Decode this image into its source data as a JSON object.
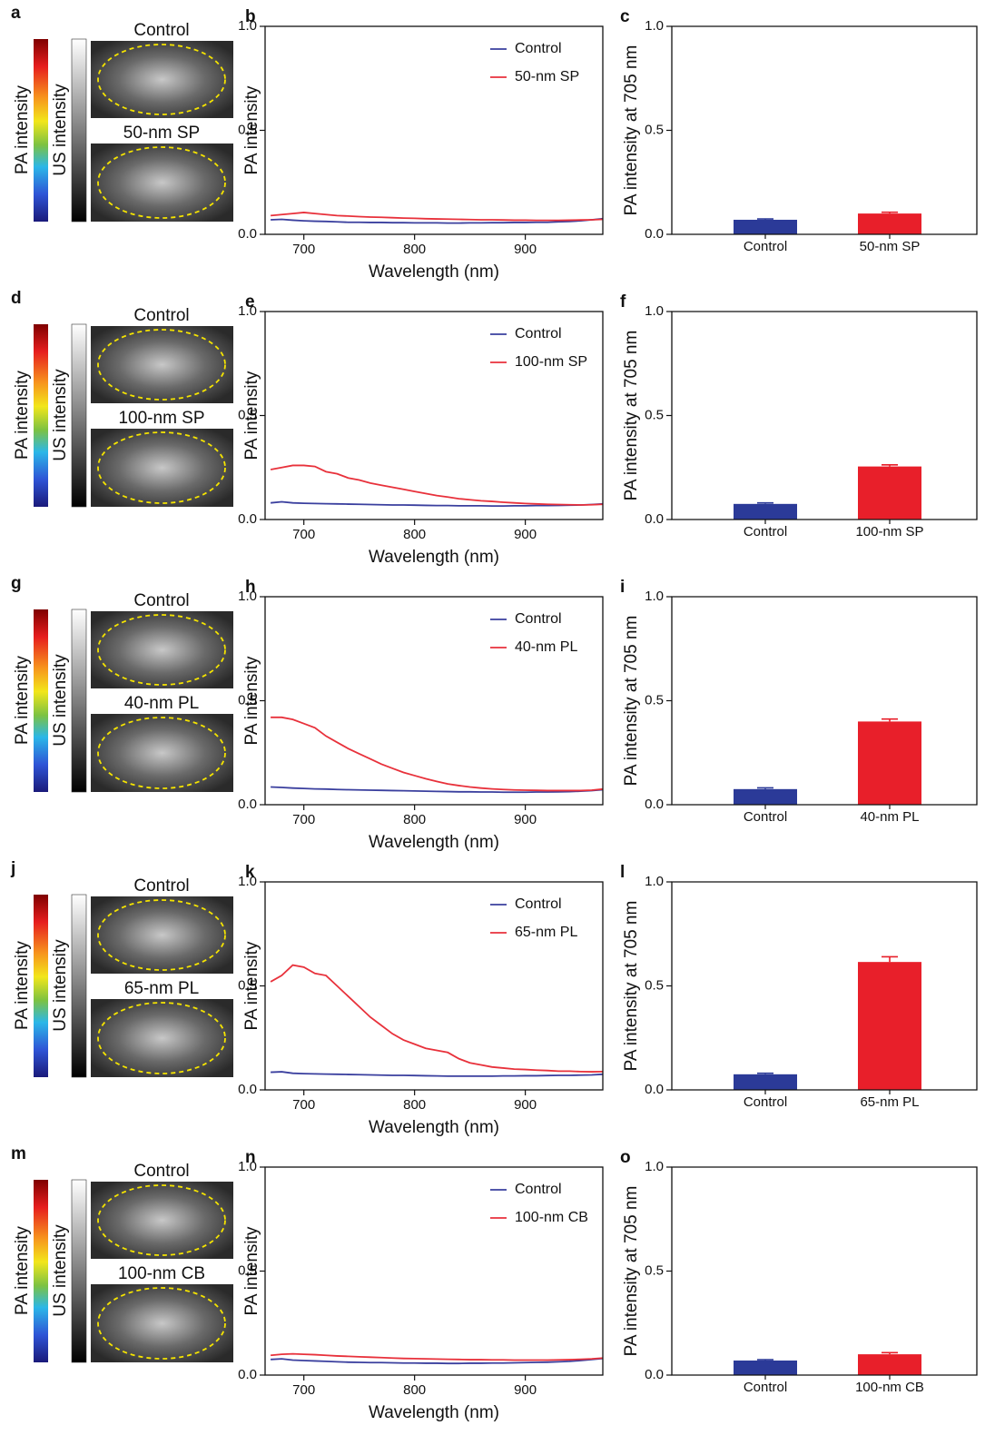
{
  "image_panels": [
    {
      "panel_label": "a",
      "colorbar_labels": [
        "PA intensity",
        "US intensity"
      ],
      "image_titles": [
        "Control",
        "50-nm SP"
      ]
    },
    {
      "panel_label": "d",
      "colorbar_labels": [
        "PA intensity",
        "US intensity"
      ],
      "image_titles": [
        "Control",
        "100-nm SP"
      ]
    },
    {
      "panel_label": "g",
      "colorbar_labels": [
        "PA intensity",
        "US intensity"
      ],
      "image_titles": [
        "Control",
        "40-nm PL"
      ]
    },
    {
      "panel_label": "j",
      "colorbar_labels": [
        "PA intensity",
        "US intensity"
      ],
      "image_titles": [
        "Control",
        "65-nm PL"
      ]
    },
    {
      "panel_label": "m",
      "colorbar_labels": [
        "PA intensity",
        "US intensity"
      ],
      "image_titles": [
        "Control",
        "100-nm CB"
      ]
    }
  ],
  "chart_data": [
    {
      "type": "line",
      "panel_label": "b",
      "ylabel": "PA intensity",
      "xlabel": "Wavelength (nm)",
      "legend": "upper right",
      "x": [
        670,
        680,
        690,
        700,
        710,
        720,
        730,
        740,
        750,
        760,
        770,
        780,
        790,
        800,
        810,
        820,
        830,
        840,
        850,
        860,
        870,
        880,
        890,
        900,
        910,
        920,
        930,
        940,
        950,
        960,
        970
      ],
      "xlim": [
        665,
        970
      ],
      "xticks": [
        700,
        800,
        900
      ],
      "ylim": [
        0,
        1
      ],
      "yticks": [
        {
          "value": 0,
          "label": "0.0"
        },
        {
          "value": 0.5,
          "label": "0.5"
        },
        {
          "value": 1,
          "label": "1.0"
        }
      ],
      "series": [
        {
          "name": "Control",
          "color": "#3a3f9e",
          "values": [
            0.07,
            0.072,
            0.068,
            0.065,
            0.063,
            0.062,
            0.06,
            0.058,
            0.058,
            0.057,
            0.057,
            0.056,
            0.056,
            0.055,
            0.055,
            0.055,
            0.054,
            0.054,
            0.055,
            0.055,
            0.056,
            0.056,
            0.057,
            0.057,
            0.058,
            0.058,
            0.06,
            0.062,
            0.065,
            0.07,
            0.075
          ]
        },
        {
          "name": "50-nm SP",
          "color": "#e8313b",
          "values": [
            0.09,
            0.095,
            0.1,
            0.105,
            0.1,
            0.095,
            0.09,
            0.088,
            0.085,
            0.083,
            0.082,
            0.08,
            0.078,
            0.077,
            0.075,
            0.074,
            0.073,
            0.072,
            0.071,
            0.07,
            0.07,
            0.069,
            0.068,
            0.068,
            0.067,
            0.067,
            0.067,
            0.068,
            0.069,
            0.07,
            0.072
          ]
        }
      ]
    },
    {
      "type": "bar",
      "panel_label": "c",
      "ylabel": "PA intensity at 705 nm",
      "categories": [
        "Control",
        "50-nm SP"
      ],
      "values": [
        0.07,
        0.1
      ],
      "errors": [
        0.004,
        0.006
      ],
      "colors": [
        "#2b3a98",
        "#e81f2a"
      ],
      "ylim": [
        0,
        1
      ],
      "yticks": [
        {
          "value": 0,
          "label": "0.0"
        },
        {
          "value": 0.5,
          "label": "0.5"
        },
        {
          "value": 1,
          "label": "1.0"
        }
      ]
    },
    {
      "type": "line",
      "panel_label": "e",
      "ylabel": "PA intensity",
      "xlabel": "Wavelength (nm)",
      "legend": "upper right",
      "x": [
        670,
        680,
        690,
        700,
        710,
        720,
        730,
        740,
        750,
        760,
        770,
        780,
        790,
        800,
        810,
        820,
        830,
        840,
        850,
        860,
        870,
        880,
        890,
        900,
        910,
        920,
        930,
        940,
        950,
        960,
        970
      ],
      "xlim": [
        665,
        970
      ],
      "xticks": [
        700,
        800,
        900
      ],
      "ylim": [
        0,
        1
      ],
      "yticks": [
        {
          "value": 0,
          "label": "0.0"
        },
        {
          "value": 0.5,
          "label": "0.5"
        },
        {
          "value": 1,
          "label": "1.0"
        }
      ],
      "series": [
        {
          "name": "Control",
          "color": "#3a3f9e",
          "values": [
            0.08,
            0.085,
            0.08,
            0.078,
            0.077,
            0.076,
            0.075,
            0.074,
            0.073,
            0.072,
            0.071,
            0.07,
            0.07,
            0.069,
            0.068,
            0.067,
            0.067,
            0.066,
            0.066,
            0.066,
            0.065,
            0.065,
            0.066,
            0.066,
            0.067,
            0.067,
            0.068,
            0.069,
            0.07,
            0.072,
            0.075
          ]
        },
        {
          "name": "100-nm SP",
          "color": "#e8313b",
          "values": [
            0.24,
            0.25,
            0.26,
            0.26,
            0.255,
            0.23,
            0.22,
            0.2,
            0.19,
            0.175,
            0.165,
            0.155,
            0.145,
            0.135,
            0.125,
            0.115,
            0.108,
            0.1,
            0.095,
            0.09,
            0.087,
            0.083,
            0.08,
            0.077,
            0.075,
            0.073,
            0.072,
            0.071,
            0.07,
            0.071,
            0.073
          ]
        }
      ]
    },
    {
      "type": "bar",
      "panel_label": "f",
      "ylabel": "PA intensity at 705 nm",
      "categories": [
        "Control",
        "100-nm SP"
      ],
      "values": [
        0.075,
        0.255
      ],
      "errors": [
        0.005,
        0.008
      ],
      "colors": [
        "#2b3a98",
        "#e81f2a"
      ],
      "ylim": [
        0,
        1
      ],
      "yticks": [
        {
          "value": 0,
          "label": "0.0"
        },
        {
          "value": 0.5,
          "label": "0.5"
        },
        {
          "value": 1,
          "label": "1.0"
        }
      ]
    },
    {
      "type": "line",
      "panel_label": "h",
      "ylabel": "PA intensity",
      "xlabel": "Wavelength (nm)",
      "legend": "upper right",
      "x": [
        670,
        680,
        690,
        700,
        710,
        720,
        730,
        740,
        750,
        760,
        770,
        780,
        790,
        800,
        810,
        820,
        830,
        840,
        850,
        860,
        870,
        880,
        890,
        900,
        910,
        920,
        930,
        940,
        950,
        960,
        970
      ],
      "xlim": [
        665,
        970
      ],
      "xticks": [
        700,
        800,
        900
      ],
      "ylim": [
        0,
        1
      ],
      "yticks": [
        {
          "value": 0,
          "label": "0.0"
        },
        {
          "value": 0.5,
          "label": "0.5"
        },
        {
          "value": 1,
          "label": "1.0"
        }
      ],
      "series": [
        {
          "name": "Control",
          "color": "#3a3f9e",
          "values": [
            0.085,
            0.083,
            0.08,
            0.078,
            0.076,
            0.075,
            0.073,
            0.072,
            0.071,
            0.07,
            0.069,
            0.068,
            0.067,
            0.066,
            0.065,
            0.064,
            0.063,
            0.062,
            0.062,
            0.061,
            0.061,
            0.06,
            0.06,
            0.06,
            0.061,
            0.061,
            0.062,
            0.063,
            0.065,
            0.068,
            0.072
          ]
        },
        {
          "name": "40-nm PL",
          "color": "#e8313b",
          "values": [
            0.42,
            0.42,
            0.41,
            0.39,
            0.37,
            0.33,
            0.3,
            0.27,
            0.245,
            0.22,
            0.195,
            0.175,
            0.155,
            0.14,
            0.125,
            0.112,
            0.1,
            0.092,
            0.085,
            0.08,
            0.076,
            0.073,
            0.071,
            0.07,
            0.069,
            0.068,
            0.068,
            0.068,
            0.068,
            0.07,
            0.075
          ]
        }
      ]
    },
    {
      "type": "bar",
      "panel_label": "i",
      "ylabel": "PA intensity at 705 nm",
      "categories": [
        "Control",
        "40-nm PL"
      ],
      "values": [
        0.075,
        0.4
      ],
      "errors": [
        0.006,
        0.012
      ],
      "colors": [
        "#2b3a98",
        "#e81f2a"
      ],
      "ylim": [
        0,
        1
      ],
      "yticks": [
        {
          "value": 0,
          "label": "0.0"
        },
        {
          "value": 0.5,
          "label": "0.5"
        },
        {
          "value": 1,
          "label": "1.0"
        }
      ]
    },
    {
      "type": "line",
      "panel_label": "k",
      "ylabel": "PA intensity",
      "xlabel": "Wavelength (nm)",
      "legend": "upper right",
      "x": [
        670,
        680,
        690,
        700,
        710,
        720,
        730,
        740,
        750,
        760,
        770,
        780,
        790,
        800,
        810,
        820,
        830,
        840,
        850,
        860,
        870,
        880,
        890,
        900,
        910,
        920,
        930,
        940,
        950,
        960,
        970
      ],
      "xlim": [
        665,
        970
      ],
      "xticks": [
        700,
        800,
        900
      ],
      "ylim": [
        0,
        1
      ],
      "yticks": [
        {
          "value": 0,
          "label": "0.0"
        },
        {
          "value": 0.5,
          "label": "0.5"
        },
        {
          "value": 1,
          "label": "1.0"
        }
      ],
      "series": [
        {
          "name": "Control",
          "color": "#3a3f9e",
          "values": [
            0.085,
            0.087,
            0.08,
            0.078,
            0.077,
            0.076,
            0.075,
            0.074,
            0.073,
            0.072,
            0.071,
            0.07,
            0.07,
            0.069,
            0.068,
            0.067,
            0.066,
            0.066,
            0.066,
            0.066,
            0.066,
            0.067,
            0.067,
            0.068,
            0.068,
            0.069,
            0.07,
            0.07,
            0.071,
            0.072,
            0.075
          ]
        },
        {
          "name": "65-nm PL",
          "color": "#e8313b",
          "values": [
            0.52,
            0.55,
            0.6,
            0.59,
            0.56,
            0.55,
            0.5,
            0.45,
            0.4,
            0.35,
            0.31,
            0.27,
            0.24,
            0.22,
            0.2,
            0.19,
            0.18,
            0.15,
            0.13,
            0.12,
            0.11,
            0.105,
            0.1,
            0.098,
            0.095,
            0.093,
            0.09,
            0.09,
            0.088,
            0.087,
            0.088
          ]
        }
      ]
    },
    {
      "type": "bar",
      "panel_label": "l",
      "ylabel": "PA intensity at 705 nm",
      "categories": [
        "Control",
        "65-nm PL"
      ],
      "values": [
        0.075,
        0.615
      ],
      "errors": [
        0.005,
        0.025
      ],
      "colors": [
        "#2b3a98",
        "#e81f2a"
      ],
      "ylim": [
        0,
        1
      ],
      "yticks": [
        {
          "value": 0,
          "label": "0.0"
        },
        {
          "value": 0.5,
          "label": "0.5"
        },
        {
          "value": 1,
          "label": "1.0"
        }
      ]
    },
    {
      "type": "line",
      "panel_label": "n",
      "ylabel": "PA intensity",
      "xlabel": "Wavelength (nm)",
      "legend": "upper right",
      "x": [
        670,
        680,
        690,
        700,
        710,
        720,
        730,
        740,
        750,
        760,
        770,
        780,
        790,
        800,
        810,
        820,
        830,
        840,
        850,
        860,
        870,
        880,
        890,
        900,
        910,
        920,
        930,
        940,
        950,
        960,
        970
      ],
      "xlim": [
        665,
        970
      ],
      "xticks": [
        700,
        800,
        900
      ],
      "ylim": [
        0,
        1
      ],
      "yticks": [
        {
          "value": 0,
          "label": "0.0"
        },
        {
          "value": 0.5,
          "label": "0.5"
        },
        {
          "value": 1,
          "label": "1.0"
        }
      ],
      "series": [
        {
          "name": "Control",
          "color": "#3a3f9e",
          "values": [
            0.075,
            0.078,
            0.072,
            0.07,
            0.068,
            0.066,
            0.064,
            0.062,
            0.061,
            0.06,
            0.06,
            0.059,
            0.058,
            0.058,
            0.057,
            0.057,
            0.056,
            0.056,
            0.057,
            0.057,
            0.058,
            0.058,
            0.059,
            0.06,
            0.061,
            0.062,
            0.064,
            0.066,
            0.07,
            0.075,
            0.08
          ]
        },
        {
          "name": "100-nm CB",
          "color": "#e8313b",
          "values": [
            0.095,
            0.1,
            0.102,
            0.1,
            0.098,
            0.095,
            0.092,
            0.09,
            0.088,
            0.086,
            0.084,
            0.082,
            0.08,
            0.079,
            0.078,
            0.077,
            0.076,
            0.075,
            0.074,
            0.074,
            0.073,
            0.073,
            0.072,
            0.072,
            0.072,
            0.072,
            0.073,
            0.074,
            0.076,
            0.078,
            0.082
          ]
        }
      ]
    },
    {
      "type": "bar",
      "panel_label": "o",
      "ylabel": "PA intensity at 705 nm",
      "categories": [
        "Control",
        "100-nm CB"
      ],
      "values": [
        0.07,
        0.1
      ],
      "errors": [
        0.004,
        0.008
      ],
      "colors": [
        "#2b3a98",
        "#e81f2a"
      ],
      "ylim": [
        0,
        1
      ],
      "yticks": [
        {
          "value": 0,
          "label": "0.0"
        },
        {
          "value": 0.5,
          "label": "0.5"
        },
        {
          "value": 1,
          "label": "1.0"
        }
      ]
    }
  ]
}
